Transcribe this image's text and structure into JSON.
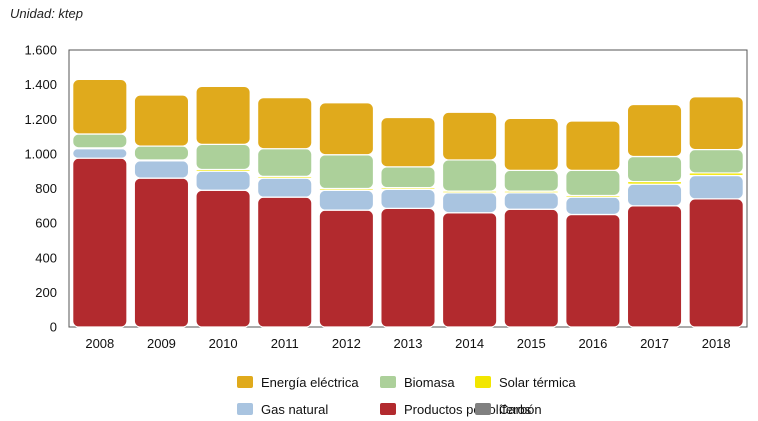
{
  "chart_data": {
    "type": "stacked-bar",
    "unit_label": "Unidad: ktep",
    "categories": [
      "2008",
      "2009",
      "2010",
      "2011",
      "2012",
      "2013",
      "2014",
      "2015",
      "2016",
      "2017",
      "2018"
    ],
    "ylim": [
      0,
      1600
    ],
    "yticks": [
      0,
      200,
      400,
      600,
      800,
      1000,
      1200,
      1400,
      1600
    ],
    "ytick_labels": [
      "0",
      "200",
      "400",
      "600",
      "800",
      "1.000",
      "1.200",
      "1.400",
      "1.600"
    ],
    "grid": false,
    "series": [
      {
        "name": "Productos petrolíferos",
        "color": "#b22a2e",
        "values": [
          975,
          860,
          790,
          750,
          675,
          685,
          660,
          680,
          650,
          700,
          740
        ]
      },
      {
        "name": "Carbón",
        "color": "#808080",
        "values": [
          0,
          0,
          0,
          0,
          0,
          0,
          0,
          0,
          0,
          0,
          0
        ]
      },
      {
        "name": "Gas natural",
        "color": "#a9c4e0",
        "values": [
          55,
          100,
          110,
          110,
          115,
          110,
          115,
          95,
          100,
          125,
          135
        ]
      },
      {
        "name": "Solar térmica",
        "color": "#f2e600",
        "values": [
          5,
          5,
          10,
          10,
          10,
          10,
          10,
          10,
          10,
          15,
          15
        ]
      },
      {
        "name": "Biomasa",
        "color": "#acd09a",
        "values": [
          80,
          80,
          145,
          160,
          195,
          120,
          180,
          120,
          145,
          145,
          135
        ]
      },
      {
        "name": "Energía eléctrica",
        "color": "#e0aa1c",
        "values": [
          315,
          295,
          335,
          295,
          300,
          285,
          275,
          300,
          285,
          300,
          305
        ]
      }
    ],
    "legend": {
      "position": "bottom",
      "rows": [
        [
          "Energía eléctrica",
          "Biomasa",
          "Solar térmica"
        ],
        [
          "Gas natural",
          "Productos petrolíferos",
          "Carbón"
        ]
      ]
    }
  }
}
